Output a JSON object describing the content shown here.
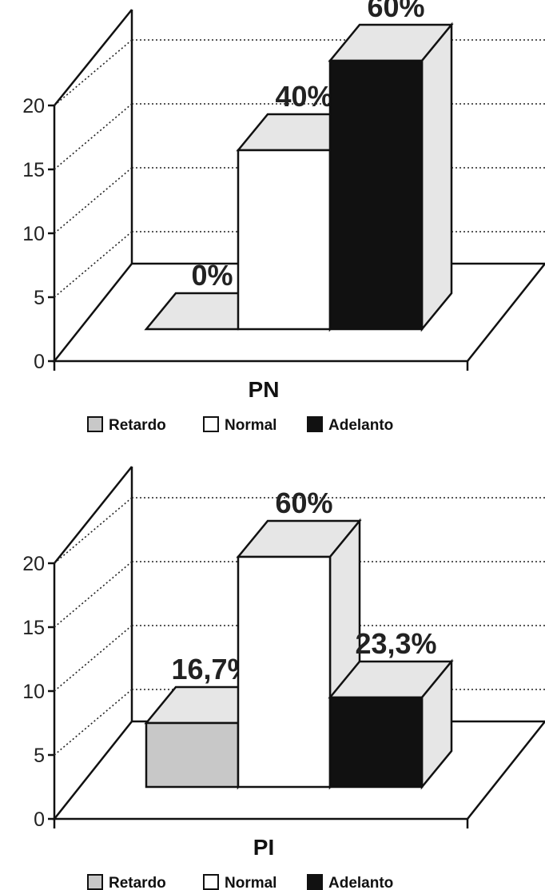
{
  "chart_data": [
    {
      "type": "bar",
      "xlabel": "PN",
      "ylim": [
        0,
        20
      ],
      "yticks": [
        "0",
        "5",
        "10",
        "15",
        "20"
      ],
      "categories": [
        "PN"
      ],
      "series": [
        {
          "name": "Retardo",
          "values": [
            0
          ],
          "label": "0%",
          "color": "#c8c8c8"
        },
        {
          "name": "Normal",
          "values": [
            14
          ],
          "label": "40%",
          "color": "#ffffff"
        },
        {
          "name": "Adelanto",
          "values": [
            21
          ],
          "label": "60%",
          "color": "#111111"
        }
      ],
      "legend": [
        "Retardo",
        "Normal",
        "Adelanto"
      ],
      "legend_position": "bottom",
      "grid": true
    },
    {
      "type": "bar",
      "xlabel": "PI",
      "ylim": [
        0,
        20
      ],
      "yticks": [
        "0",
        "5",
        "10",
        "15",
        "20"
      ],
      "categories": [
        "PI"
      ],
      "series": [
        {
          "name": "Retardo",
          "values": [
            5
          ],
          "label": "16,7%",
          "color": "#c8c8c8"
        },
        {
          "name": "Normal",
          "values": [
            18
          ],
          "label": "60%",
          "color": "#ffffff"
        },
        {
          "name": "Adelanto",
          "values": [
            7
          ],
          "label": "23,3%",
          "color": "#111111"
        }
      ],
      "legend": [
        "Retardo",
        "Normal",
        "Adelanto"
      ],
      "legend_position": "bottom",
      "grid": true
    }
  ],
  "colors": {
    "side_face": "#e6e6e6",
    "top_face": "#e6e6e6",
    "back_wall": "#ffffff"
  }
}
